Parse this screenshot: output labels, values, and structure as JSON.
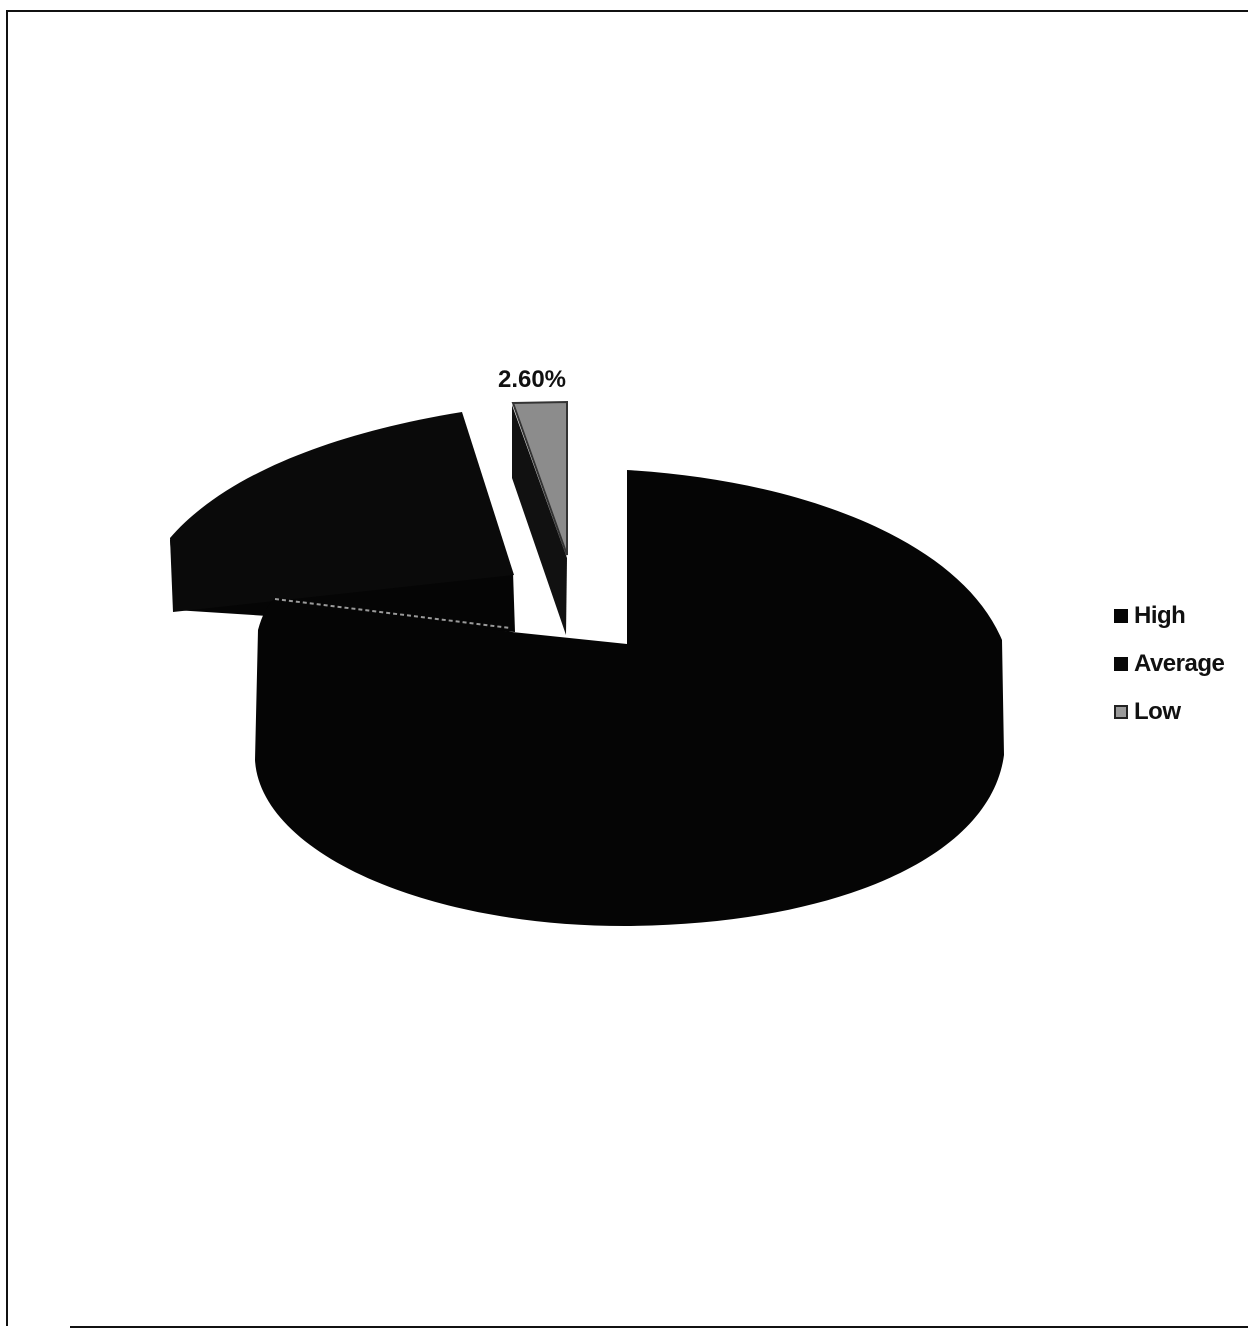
{
  "chart_data": {
    "type": "pie",
    "style": "3d-exploded",
    "categories": [
      "High",
      "Average",
      "Low"
    ],
    "values": [
      null,
      null,
      2.6
    ],
    "data_labels": [
      "",
      "",
      "2.60%"
    ],
    "legend": {
      "placement": "right",
      "entries": [
        "High",
        "Average",
        "Low"
      ]
    },
    "colors": {
      "High": "#050505",
      "Average": "#080808",
      "Low": "#8c8c8c"
    }
  }
}
